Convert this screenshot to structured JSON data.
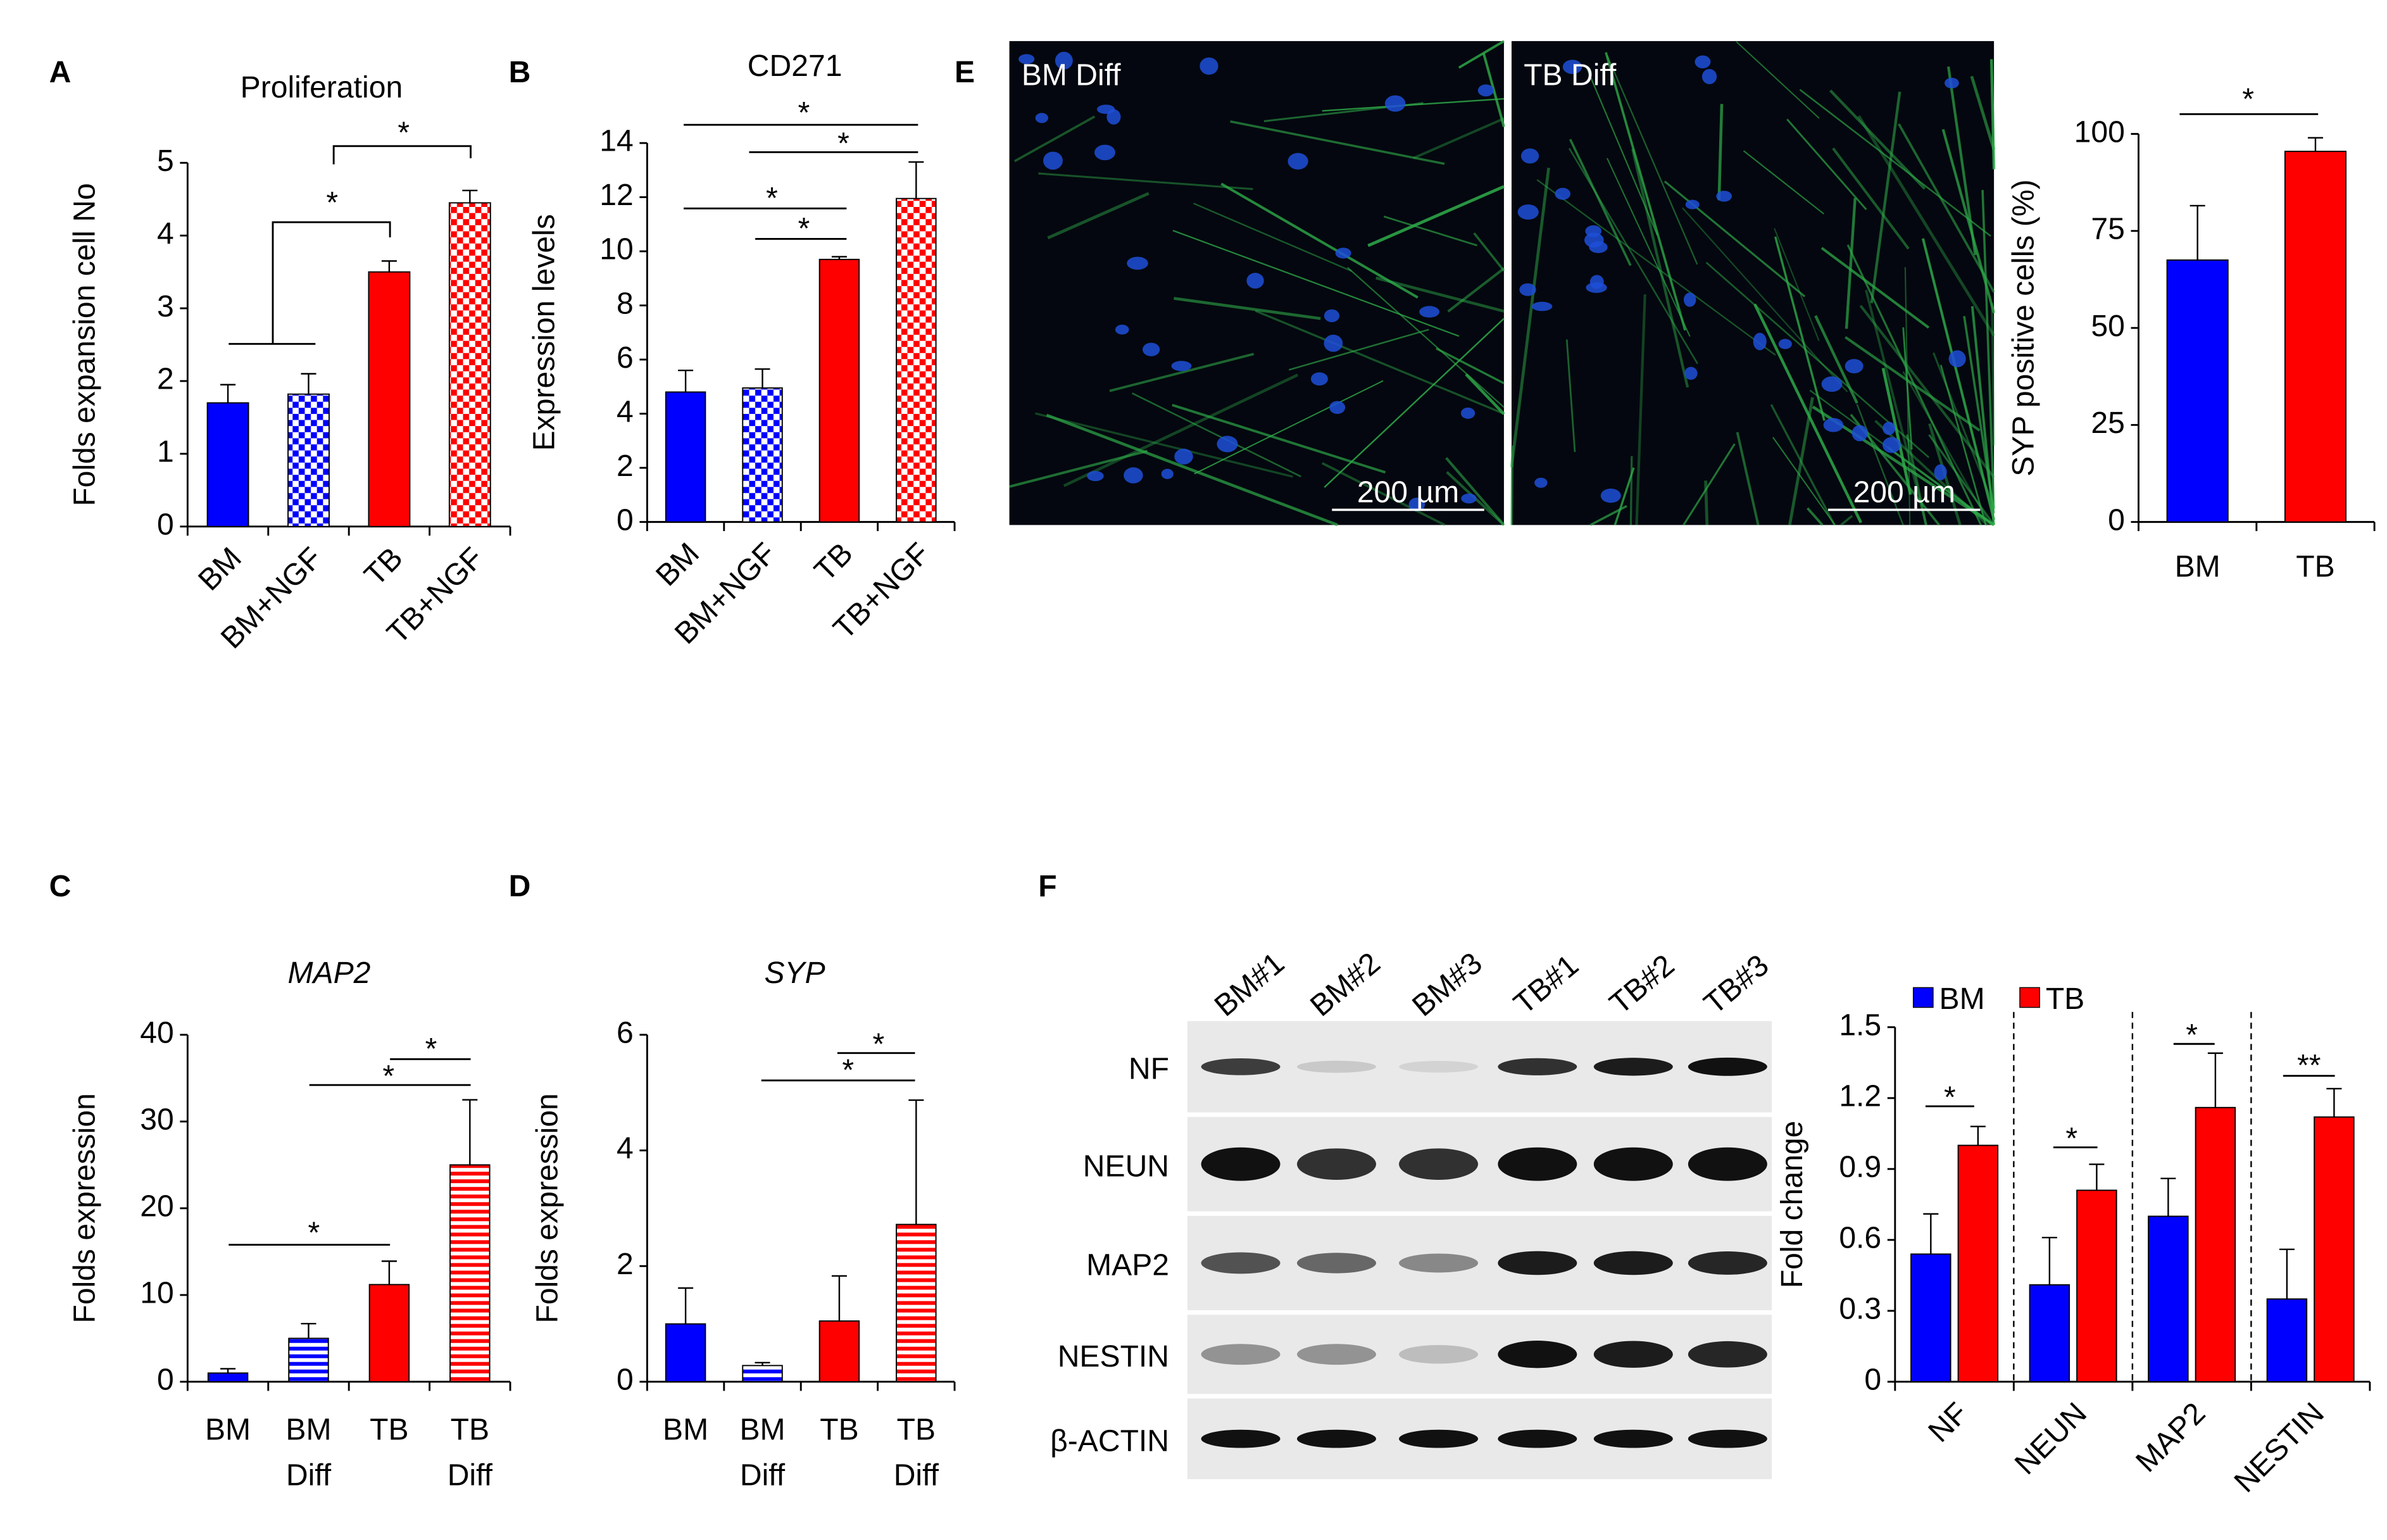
{
  "panel_labels": [
    "A",
    "B",
    "C",
    "D",
    "E",
    "F"
  ],
  "chart_data": [
    {
      "type": "bar",
      "title": "Proliferation",
      "ylabel": "Folds expansion cell No",
      "categories": [
        "BM",
        "BM+NGF",
        "TB",
        "TB+NGF"
      ],
      "series": [
        {
          "values": [
            1.7,
            1.82,
            3.5,
            4.45
          ],
          "errors": [
            0.25,
            0.28,
            0.15,
            0.17
          ],
          "colors": [
            "#0000ff",
            "#0000ff",
            "#ff0000",
            "#ff0000"
          ],
          "patterns": [
            "solid",
            "checker",
            "solid",
            "checker"
          ]
        }
      ],
      "ylim": [
        0,
        5
      ],
      "yticks": [
        0,
        1,
        2,
        3,
        4,
        5
      ],
      "significance": [
        "*",
        "*"
      ]
    },
    {
      "type": "bar",
      "title": "CD271",
      "ylabel": "Expression levels",
      "categories": [
        "BM",
        "BM+NGF",
        "TB",
        "TB+NGF"
      ],
      "series": [
        {
          "values": [
            4.8,
            4.95,
            9.7,
            11.95
          ],
          "errors": [
            0.8,
            0.7,
            0.1,
            1.35
          ],
          "colors": [
            "#0000ff",
            "#0000ff",
            "#ff0000",
            "#ff0000"
          ],
          "patterns": [
            "solid",
            "checker",
            "solid",
            "checker"
          ]
        }
      ],
      "ylim": [
        0,
        14
      ],
      "yticks": [
        0,
        2,
        4,
        6,
        8,
        10,
        12,
        14
      ],
      "significance": [
        "*",
        "*",
        "*",
        "*"
      ]
    },
    {
      "type": "bar",
      "title": "MAP2",
      "title_italic": true,
      "ylabel": "Folds expression",
      "categories": [
        "BM",
        "BM Diff",
        "TB",
        "TB Diff"
      ],
      "series": [
        {
          "values": [
            1,
            5,
            11.2,
            25
          ],
          "errors": [
            0.5,
            1.7,
            2.7,
            7.5
          ],
          "colors": [
            "#0000ff",
            "#0000ff",
            "#ff0000",
            "#ff0000"
          ],
          "patterns": [
            "solid",
            "stripes",
            "solid",
            "stripes"
          ]
        }
      ],
      "ylim": [
        0,
        40
      ],
      "yticks": [
        0,
        10,
        20,
        30,
        40
      ],
      "significance": [
        "*",
        "*",
        "*"
      ]
    },
    {
      "type": "bar",
      "title": "SYP",
      "title_italic": true,
      "ylabel": "Folds expression",
      "categories": [
        "BM",
        "BM Diff",
        "TB",
        "TB Diff"
      ],
      "series": [
        {
          "values": [
            1.0,
            0.28,
            1.05,
            2.72
          ],
          "errors": [
            0.62,
            0.05,
            0.78,
            2.15
          ],
          "colors": [
            "#0000ff",
            "#0000ff",
            "#ff0000",
            "#ff0000"
          ],
          "patterns": [
            "solid",
            "stripes",
            "solid",
            "stripes"
          ]
        }
      ],
      "ylim": [
        0,
        6
      ],
      "yticks": [
        0,
        2,
        4,
        6
      ],
      "significance": [
        "*",
        "*"
      ]
    },
    {
      "type": "bar",
      "ylabel": "SYP positive cells (%)",
      "categories": [
        "BM",
        "TB"
      ],
      "series": [
        {
          "values": [
            67.5,
            95.5
          ],
          "errors": [
            14,
            3.5
          ],
          "colors": [
            "#0000ff",
            "#ff0000"
          ],
          "patterns": [
            "solid",
            "solid"
          ]
        }
      ],
      "ylim": [
        0,
        100
      ],
      "yticks": [
        0,
        25,
        50,
        75,
        100
      ],
      "significance": [
        "*"
      ]
    },
    {
      "type": "grouped_bar",
      "ylabel": "Fold change",
      "categories": [
        "NF",
        "NEUN",
        "MAP2",
        "NESTIN"
      ],
      "series": [
        {
          "name": "BM",
          "color": "#0000ff",
          "values": [
            0.54,
            0.41,
            0.7,
            0.35
          ],
          "errors": [
            0.17,
            0.2,
            0.16,
            0.21
          ]
        },
        {
          "name": "TB",
          "color": "#ff0000",
          "values": [
            1.0,
            0.81,
            1.16,
            1.12
          ],
          "errors": [
            0.08,
            0.11,
            0.23,
            0.12
          ]
        }
      ],
      "ylim": [
        0,
        1.5
      ],
      "yticks": [
        0,
        0.3,
        0.6,
        0.9,
        1.2,
        1.5
      ],
      "legend": "top",
      "significance": [
        "*",
        "*",
        "*",
        "**"
      ]
    }
  ],
  "micrographs": [
    {
      "label": "BM Diff",
      "scale_bar": "200 µm"
    },
    {
      "label": "TB Diff",
      "scale_bar": "200 µm"
    }
  ],
  "western_blot": {
    "lanes": [
      "BM#1",
      "BM#2",
      "BM#3",
      "TB#1",
      "TB#2",
      "TB#3"
    ],
    "rows": [
      "NF",
      "NEUN",
      "MAP2",
      "NESTIN",
      "β-ACTIN"
    ]
  }
}
